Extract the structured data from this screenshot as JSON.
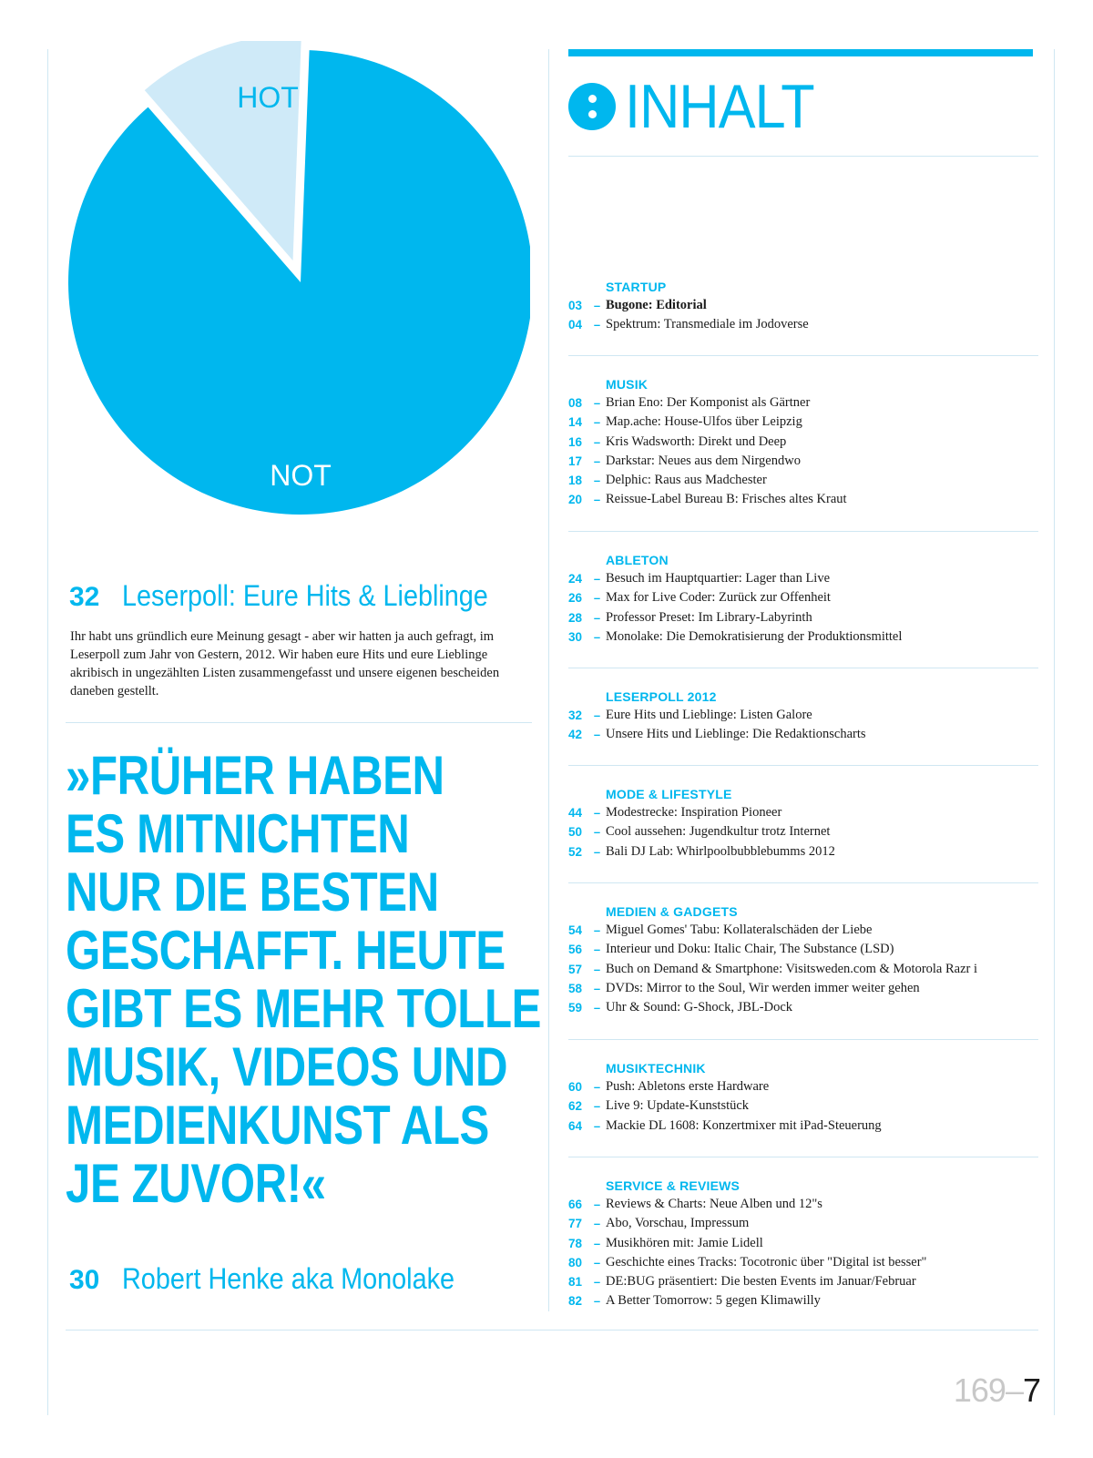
{
  "pie": {
    "hot_label": "HOT",
    "not_label": "NOT",
    "colors": {
      "main": "#00b7ee",
      "highlight": "#cfeaf8"
    }
  },
  "chart_data": {
    "type": "pie",
    "title": "",
    "slices": [
      {
        "label": "HOT",
        "value": 12,
        "exploded": true
      },
      {
        "label": "NOT",
        "value": 88
      }
    ]
  },
  "features": [
    {
      "num": "32",
      "title": "Leserpoll: Eure Hits & Lieblinge"
    },
    {
      "num": "30",
      "title": "Robert Henke aka Monolake"
    }
  ],
  "intro_text": "Ihr habt uns gründlich eure Meinung gesagt - aber wir hatten ja auch gefragt, im Leserpoll zum Jahr von Gestern, 2012. Wir haben eure Hits und eure Lieblinge akribisch in ungezählten Listen zusammengefasst und unsere eigenen bescheiden daneben gestellt.",
  "quote_lines": [
    "»FRÜHER HABEN",
    "ES MITNICHTEN",
    "NUR DIE BESTEN",
    "GESCHAFFT. HEUTE",
    "GIBT ES MEHR TOLLE",
    "MUSIK, VIDEOS UND",
    "MEDIENKUNST ALS",
    "JE ZUVOR!«"
  ],
  "toc": {
    "heading": "INHALT",
    "sections": [
      {
        "title": "STARTUP",
        "entries": [
          {
            "page": "03",
            "text": "Bugone: Editorial",
            "bold": true
          },
          {
            "page": "04",
            "text": "Spektrum: Transmediale im Jodoverse"
          }
        ]
      },
      {
        "title": "MUSIK",
        "entries": [
          {
            "page": "08",
            "text": "Brian Eno: Der Komponist als Gärtner"
          },
          {
            "page": "14",
            "text": "Map.ache: House-Ulfos über Leipzig"
          },
          {
            "page": "16",
            "text": "Kris Wadsworth: Direkt und Deep"
          },
          {
            "page": "17",
            "text": "Darkstar: Neues aus dem Nirgendwo"
          },
          {
            "page": "18",
            "text": "Delphic: Raus aus Madchester"
          },
          {
            "page": "20",
            "text": "Reissue-Label Bureau B: Frisches altes Kraut"
          }
        ]
      },
      {
        "title": "ABLETON",
        "entries": [
          {
            "page": "24",
            "text": "Besuch im Hauptquartier: Lager than Live"
          },
          {
            "page": "26",
            "text": "Max for Live Coder: Zurück zur Offenheit"
          },
          {
            "page": "28",
            "text": "Professor Preset: Im Library-Labyrinth"
          },
          {
            "page": "30",
            "text": "Monolake: Die Demokratisierung der Produktionsmittel"
          }
        ]
      },
      {
        "title": "LESERPOLL 2012",
        "entries": [
          {
            "page": "32",
            "text": "Eure Hits und Lieblinge: Listen Galore"
          },
          {
            "page": "42",
            "text": "Unsere Hits und Lieblinge: Die Redaktionscharts"
          }
        ]
      },
      {
        "title": "MODE & LIFESTYLE",
        "entries": [
          {
            "page": "44",
            "text": "Modestrecke: Inspiration Pioneer"
          },
          {
            "page": "50",
            "text": "Cool aussehen: Jugendkultur trotz Internet"
          },
          {
            "page": "52",
            "text": "Bali DJ Lab: Whirlpoolbubblebumms 2012"
          }
        ]
      },
      {
        "title": "MEDIEN & GADGETS",
        "entries": [
          {
            "page": "54",
            "text": "Miguel Gomes' Tabu: Kollateralschäden der Liebe"
          },
          {
            "page": "56",
            "text": "Interieur und Doku: Italic Chair, The Substance (LSD)"
          },
          {
            "page": "57",
            "text": "Buch on Demand & Smartphone: Visitsweden.com & Motorola Razr i"
          },
          {
            "page": "58",
            "text": "DVDs: Mirror to the Soul, Wir werden immer weiter gehen"
          },
          {
            "page": "59",
            "text": "Uhr & Sound: G-Shock, JBL-Dock"
          }
        ]
      },
      {
        "title": "MUSIKTECHNIK",
        "entries": [
          {
            "page": "60",
            "text": "Push: Abletons erste Hardware"
          },
          {
            "page": "62",
            "text": "Live 9: Update-Kunststück"
          },
          {
            "page": "64",
            "text": "Mackie DL 1608: Konzertmixer mit iPad-Steuerung"
          }
        ]
      },
      {
        "title": "SERVICE & REVIEWS",
        "entries": [
          {
            "page": "66",
            "text": "Reviews & Charts: Neue Alben und 12\"s"
          },
          {
            "page": "77",
            "text": "Abo, Vorschau, Impressum"
          },
          {
            "page": "78",
            "text": "Musikhören mit: Jamie Lidell"
          },
          {
            "page": "80",
            "text": "Geschichte eines Tracks: Tocotronic über \"Digital ist besser\""
          },
          {
            "page": "81",
            "text": "DE:BUG präsentiert: Die besten Events im Januar/Februar"
          },
          {
            "page": "82",
            "text": "A Better Tomorrow: 5 gegen Klimawilly"
          }
        ]
      }
    ]
  },
  "footer": {
    "issue": "169",
    "dash": "–",
    "page": "7"
  }
}
